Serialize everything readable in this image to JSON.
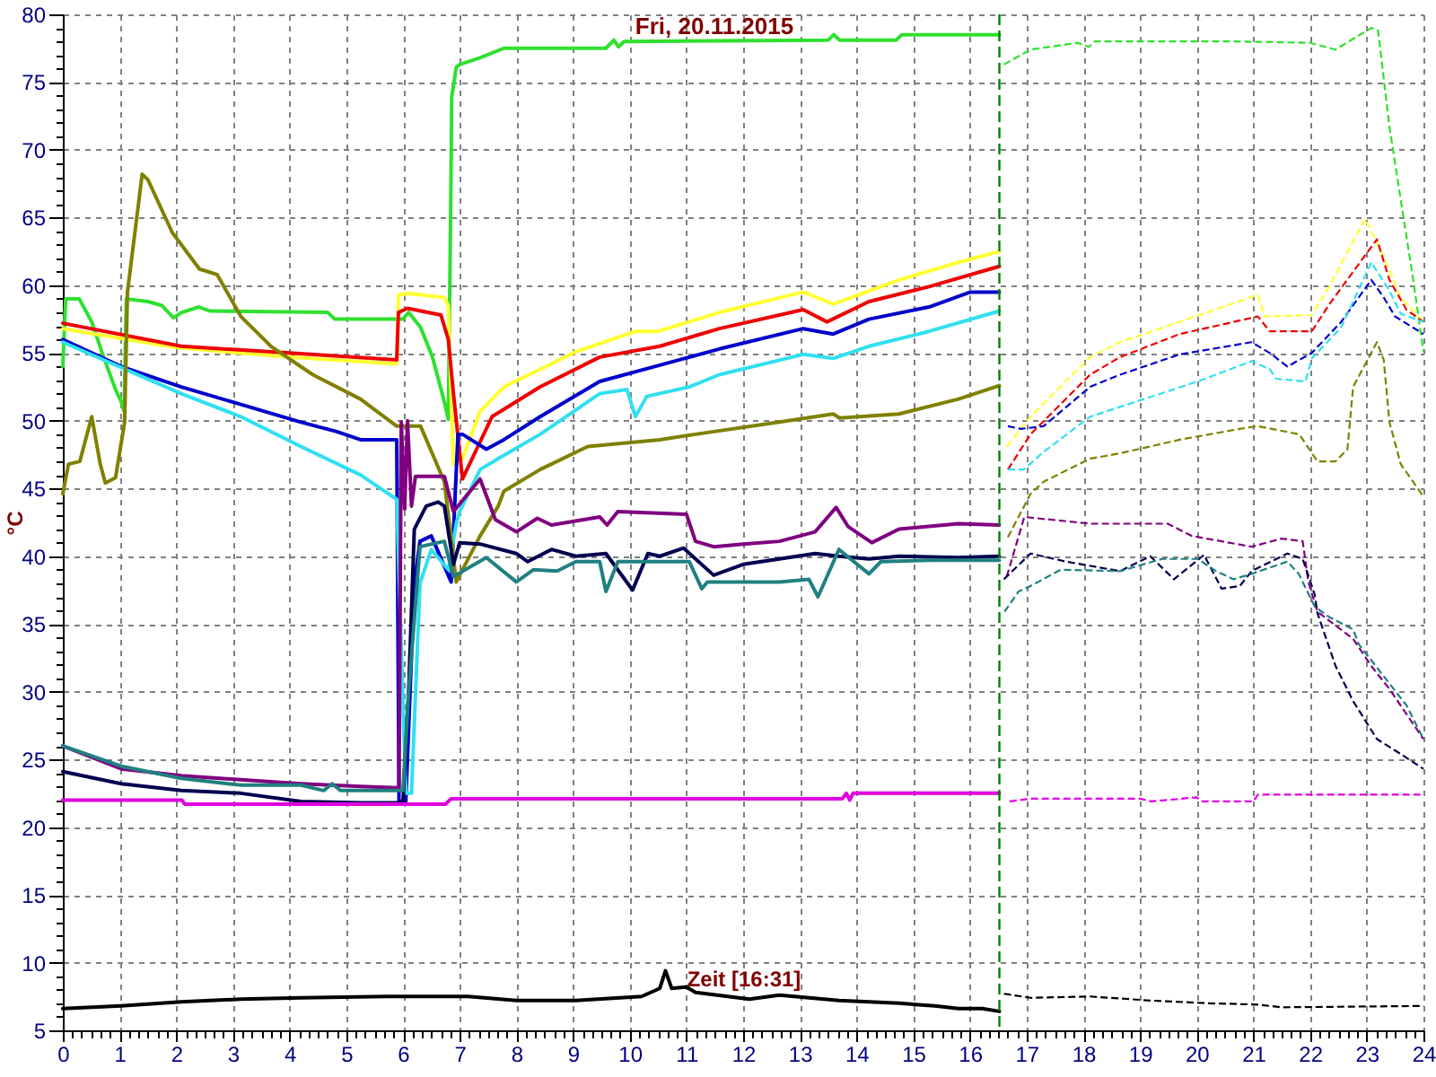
{
  "chart_data": {
    "type": "line",
    "title": "Fri, 20.11.2015",
    "xlabel": "Zeit [16:31]",
    "ylabel": "°C",
    "xlim": [
      0,
      24
    ],
    "ylim": [
      5,
      80
    ],
    "xticks": [
      0,
      {
        "value": 0.17,
        "label": null
      },
      {
        "value": 0.33,
        "label": null
      },
      {
        "value": 0.5,
        "label": null
      },
      {
        "value": 0.67,
        "label": null
      },
      {
        "value": 0.83,
        "label": null
      },
      1,
      {
        "value": 1.17,
        "label": null
      },
      {
        "value": 1.33,
        "label": null
      },
      {
        "value": 1.5,
        "label": null
      },
      {
        "value": 1.67,
        "label": null
      },
      {
        "value": 1.83,
        "label": null
      },
      2,
      {
        "value": 2.17,
        "label": null
      },
      {
        "value": 2.33,
        "label": null
      },
      {
        "value": 2.5,
        "label": null
      },
      {
        "value": 2.67,
        "label": null
      },
      {
        "value": 2.83,
        "label": null
      },
      3,
      {
        "value": 3.17,
        "label": null
      },
      {
        "value": 3.33,
        "label": null
      },
      {
        "value": 3.5,
        "label": null
      },
      {
        "value": 3.67,
        "label": null
      },
      {
        "value": 3.83,
        "label": null
      },
      4,
      {
        "value": 4.17,
        "label": null
      },
      {
        "value": 4.33,
        "label": null
      },
      {
        "value": 4.5,
        "label": null
      },
      {
        "value": 4.67,
        "label": null
      },
      {
        "value": 4.83,
        "label": null
      },
      5,
      {
        "value": 5.17,
        "label": null
      },
      {
        "value": 5.33,
        "label": null
      },
      {
        "value": 5.5,
        "label": null
      },
      {
        "value": 5.67,
        "label": null
      },
      {
        "value": 5.83,
        "label": null
      },
      6,
      {
        "value": 6.17,
        "label": null
      },
      {
        "value": 6.33,
        "label": null
      },
      {
        "value": 6.5,
        "label": null
      },
      {
        "value": 6.67,
        "label": null
      },
      {
        "value": 6.83,
        "label": null
      },
      7,
      {
        "value": 7.17,
        "label": null
      },
      {
        "value": 7.33,
        "label": null
      },
      {
        "value": 7.5,
        "label": null
      },
      {
        "value": 7.67,
        "label": null
      },
      {
        "value": 7.83,
        "label": null
      },
      8,
      {
        "value": 8.17,
        "label": null
      },
      {
        "value": 8.33,
        "label": null
      },
      {
        "value": 8.5,
        "label": null
      },
      {
        "value": 8.67,
        "label": null
      },
      {
        "value": 8.83,
        "label": null
      },
      9,
      {
        "value": 9.17,
        "label": null
      },
      {
        "value": 9.33,
        "label": null
      },
      {
        "value": 9.5,
        "label": null
      },
      {
        "value": 9.67,
        "label": null
      },
      {
        "value": 9.83,
        "label": null
      },
      10,
      {
        "value": 10.17,
        "label": null
      },
      {
        "value": 10.33,
        "label": null
      },
      {
        "value": 10.5,
        "label": null
      },
      {
        "value": 10.67,
        "label": null
      },
      {
        "value": 10.83,
        "label": null
      },
      11,
      {
        "value": 11.17,
        "label": null
      },
      {
        "value": 11.33,
        "label": null
      },
      {
        "value": 11.5,
        "label": null
      },
      {
        "value": 11.67,
        "label": null
      },
      {
        "value": 11.83,
        "label": null
      },
      12,
      {
        "value": 12.17,
        "label": null
      },
      {
        "value": 12.33,
        "label": null
      },
      {
        "value": 12.5,
        "label": null
      },
      {
        "value": 12.67,
        "label": null
      },
      {
        "value": 12.83,
        "label": null
      },
      13,
      {
        "value": 13.17,
        "label": null
      },
      {
        "value": 13.33,
        "label": null
      },
      {
        "value": 13.5,
        "label": null
      },
      {
        "value": 13.67,
        "label": null
      },
      {
        "value": 13.83,
        "label": null
      },
      14,
      {
        "value": 14.17,
        "label": null
      },
      {
        "value": 14.33,
        "label": null
      },
      {
        "value": 14.5,
        "label": null
      },
      {
        "value": 14.67,
        "label": null
      },
      {
        "value": 14.83,
        "label": null
      },
      15,
      {
        "value": 15.17,
        "label": null
      },
      {
        "value": 15.33,
        "label": null
      },
      {
        "value": 15.5,
        "label": null
      },
      {
        "value": 15.67,
        "label": null
      },
      {
        "value": 15.83,
        "label": null
      },
      16,
      {
        "value": 16.17,
        "label": null
      },
      {
        "value": 16.33,
        "label": null
      },
      {
        "value": 16.5,
        "label": null
      },
      {
        "value": 16.67,
        "label": null
      },
      {
        "value": 16.83,
        "label": null
      },
      17,
      {
        "value": 17.17,
        "label": null
      },
      {
        "value": 17.33,
        "label": null
      },
      {
        "value": 17.5,
        "label": null
      },
      {
        "value": 17.67,
        "label": null
      },
      {
        "value": 17.83,
        "label": null
      },
      18,
      {
        "value": 18.17,
        "label": null
      },
      {
        "value": 18.33,
        "label": null
      },
      {
        "value": 18.5,
        "label": null
      },
      {
        "value": 18.67,
        "label": null
      },
      {
        "value": 18.83,
        "label": null
      },
      19,
      {
        "value": 19.17,
        "label": null
      },
      {
        "value": 19.33,
        "label": null
      },
      {
        "value": 19.5,
        "label": null
      },
      {
        "value": 19.67,
        "label": null
      },
      {
        "value": 19.83,
        "label": null
      },
      20,
      {
        "value": 20.17,
        "label": null
      },
      {
        "value": 20.33,
        "label": null
      },
      {
        "value": 20.5,
        "label": null
      },
      {
        "value": 20.67,
        "label": null
      },
      {
        "value": 20.83,
        "label": null
      },
      21,
      {
        "value": 21.17,
        "label": null
      },
      {
        "value": 21.33,
        "label": null
      },
      {
        "value": 21.5,
        "label": null
      },
      {
        "value": 21.67,
        "label": null
      },
      {
        "value": 21.83,
        "label": null
      },
      22,
      {
        "value": 22.17,
        "label": null
      },
      {
        "value": 22.33,
        "label": null
      },
      {
        "value": 22.5,
        "label": null
      },
      {
        "value": 22.67,
        "label": null
      },
      {
        "value": 22.83,
        "label": null
      },
      23,
      {
        "value": 23.17,
        "label": null
      },
      {
        "value": 23.33,
        "label": null
      },
      {
        "value": 23.5,
        "label": null
      },
      {
        "value": 23.67,
        "label": null
      },
      {
        "value": 23.83,
        "label": null
      },
      24
    ],
    "yticks": [
      5,
      {
        "value": 6,
        "label": null
      },
      {
        "value": 7,
        "label": null
      },
      {
        "value": 8,
        "label": null
      },
      {
        "value": 9,
        "label": null
      },
      10,
      {
        "value": 11,
        "label": null
      },
      {
        "value": 12,
        "label": null
      },
      {
        "value": 13,
        "label": null
      },
      {
        "value": 14,
        "label": null
      },
      15,
      {
        "value": 16,
        "label": null
      },
      {
        "value": 17,
        "label": null
      },
      {
        "value": 18,
        "label": null
      },
      {
        "value": 19,
        "label": null
      },
      20,
      {
        "value": 21,
        "label": null
      },
      {
        "value": 22,
        "label": null
      },
      {
        "value": 23,
        "label": null
      },
      {
        "value": 24,
        "label": null
      },
      25,
      {
        "value": 26,
        "label": null
      },
      {
        "value": 27,
        "label": null
      },
      {
        "value": 28,
        "label": null
      },
      {
        "value": 29,
        "label": null
      },
      30,
      {
        "value": 31,
        "label": null
      },
      {
        "value": 32,
        "label": null
      },
      {
        "value": 33,
        "label": null
      },
      {
        "value": 34,
        "label": null
      },
      35,
      {
        "value": 36,
        "label": null
      },
      {
        "value": 37,
        "label": null
      },
      {
        "value": 38,
        "label": null
      },
      {
        "value": 39,
        "label": null
      },
      40,
      {
        "value": 41,
        "label": null
      },
      {
        "value": 42,
        "label": null
      },
      {
        "value": 43,
        "label": null
      },
      {
        "value": 44,
        "label": null
      },
      45,
      {
        "value": 46,
        "label": null
      },
      {
        "value": 47,
        "label": null
      },
      {
        "value": 48,
        "label": null
      },
      {
        "value": 49,
        "label": null
      },
      50,
      {
        "value": 51,
        "label": null
      },
      {
        "value": 52,
        "label": null
      },
      {
        "value": 53,
        "label": null
      },
      {
        "value": 54,
        "label": null
      },
      55,
      {
        "value": 56,
        "label": null
      },
      {
        "value": 57,
        "label": null
      },
      {
        "value": 58,
        "label": null
      },
      {
        "value": 59,
        "label": null
      },
      60,
      {
        "value": 61,
        "label": null
      },
      {
        "value": 62,
        "label": null
      },
      {
        "value": 63,
        "label": null
      },
      {
        "value": 64,
        "label": null
      },
      65,
      {
        "value": 66,
        "label": null
      },
      {
        "value": 67,
        "label": null
      },
      {
        "value": 68,
        "label": null
      },
      {
        "value": 69,
        "label": null
      },
      70,
      {
        "value": 71,
        "label": null
      },
      {
        "value": 72,
        "label": null
      },
      {
        "value": 73,
        "label": null
      },
      {
        "value": 74,
        "label": null
      },
      75,
      {
        "value": 76,
        "label": null
      },
      {
        "value": 77,
        "label": null
      },
      {
        "value": 78,
        "label": null
      },
      {
        "value": 79,
        "label": null
      },
      80
    ],
    "grid": true,
    "ref_lines": [
      {
        "axis": "x",
        "value": 16.52,
        "color": "#008000",
        "line_style": "dashed"
      }
    ],
    "series": [
      {
        "color": "#2fe02f",
        "line_style": "solid",
        "x": [
          0,
          0.05,
          0.29,
          0.51,
          0.72,
          0.93,
          1.03,
          1.08,
          1.12,
          1.5,
          1.75,
          1.95,
          2.1,
          2.4,
          2.6,
          4.67,
          4.8,
          6.0,
          6.1,
          6.31,
          6.52,
          6.73,
          6.8,
          6.84,
          6.86,
          6.94,
          7.0,
          7.36,
          7.78,
          9.58,
          9.72,
          9.8,
          9.9,
          13.5,
          13.6,
          13.7,
          14.7,
          14.8,
          16.52
        ],
        "values": [
          54.0,
          59.0,
          59.0,
          57.3,
          54.7,
          52.3,
          51.4,
          50.7,
          59.0,
          58.8,
          58.5,
          57.6,
          58.0,
          58.4,
          58.1,
          58.0,
          57.5,
          57.5,
          58.0,
          56.9,
          54.7,
          51.4,
          50.1,
          65.0,
          73.9,
          76.1,
          76.3,
          76.8,
          77.5,
          77.5,
          78.1,
          77.6,
          78.0,
          78.1,
          78.5,
          78.1,
          78.1,
          78.5,
          78.5
        ]
      },
      {
        "color": "#ffff30",
        "line_style": "solid",
        "x": [
          0,
          2.0,
          4.0,
          5.89,
          5.92,
          6.1,
          6.73,
          6.8,
          6.89,
          7.05,
          7.36,
          7.78,
          8.42,
          9.05,
          10.1,
          10.5,
          11.58,
          13.06,
          13.59,
          14.75,
          15.8,
          16.52
        ],
        "values": [
          56.8,
          55.4,
          54.7,
          54.2,
          59.3,
          59.4,
          59.1,
          58.5,
          46.8,
          47.2,
          50.7,
          52.5,
          53.8,
          55.1,
          56.6,
          56.6,
          58.0,
          59.5,
          58.6,
          60.4,
          61.7,
          62.5
        ]
      },
      {
        "color": "#ee0000",
        "line_style": "solid",
        "x": [
          0,
          2.09,
          4.0,
          5.89,
          5.92,
          6.08,
          6.67,
          6.8,
          6.89,
          7.05,
          7.57,
          8.42,
          9.47,
          10.53,
          11.58,
          13.06,
          13.48,
          14.22,
          15.28,
          16.52
        ],
        "values": [
          57.2,
          55.5,
          55.0,
          54.5,
          58.0,
          58.3,
          57.8,
          56.0,
          52.0,
          45.7,
          50.3,
          52.5,
          54.7,
          55.5,
          56.8,
          58.2,
          57.3,
          58.8,
          59.9,
          61.4
        ]
      },
      {
        "color": "#0000cc",
        "line_style": "solid",
        "x": [
          0,
          1.03,
          2.09,
          3.14,
          4.2,
          4.83,
          5.25,
          5.89,
          5.93,
          6.05,
          6.2,
          6.3,
          6.5,
          6.85,
          6.97,
          7.05,
          7.47,
          7.78,
          8.42,
          9.47,
          10.53,
          11.58,
          13.06,
          13.59,
          14.22,
          15.28,
          16.01,
          16.52
        ],
        "values": [
          56.0,
          54.0,
          52.5,
          51.2,
          49.9,
          49.2,
          48.6,
          48.6,
          21.9,
          21.9,
          38.0,
          41.1,
          41.5,
          38.1,
          49.0,
          49.0,
          47.9,
          48.6,
          50.3,
          52.9,
          54.1,
          55.3,
          56.8,
          56.4,
          57.5,
          58.4,
          59.5,
          59.5
        ]
      },
      {
        "color": "#30e0f0",
        "line_style": "solid",
        "x": [
          0,
          2.09,
          3.14,
          4.2,
          5.25,
          5.89,
          5.92,
          6.05,
          6.15,
          6.3,
          6.5,
          6.8,
          6.94,
          7.0,
          7.36,
          7.68,
          8.42,
          9.47,
          9.95,
          10.1,
          10.3,
          11.05,
          11.58,
          13.06,
          13.59,
          14.22,
          15.28,
          16.52
        ],
        "values": [
          55.8,
          52.0,
          50.3,
          48.1,
          46.0,
          44.2,
          40.0,
          22.5,
          22.5,
          38.0,
          40.5,
          39.0,
          42.4,
          43.3,
          46.4,
          47.2,
          49.0,
          52.0,
          52.3,
          50.3,
          51.8,
          52.5,
          53.4,
          54.9,
          54.6,
          55.5,
          56.6,
          58.1
        ]
      },
      {
        "color": "#808000",
        "line_style": "solid",
        "x": [
          0,
          0.1,
          0.3,
          0.51,
          0.66,
          0.75,
          0.93,
          1.09,
          1.14,
          1.4,
          1.5,
          1.93,
          2.41,
          2.72,
          3.14,
          3.67,
          4.41,
          5.25,
          5.89,
          6.31,
          6.73,
          6.94,
          7.36,
          7.68,
          7.78,
          8.42,
          9.26,
          10.53,
          11.16,
          12.64,
          13.59,
          13.7,
          14.75,
          15.8,
          16.52
        ],
        "values": [
          44.6,
          46.8,
          47.0,
          50.3,
          46.8,
          45.4,
          45.8,
          49.9,
          59.5,
          68.2,
          67.8,
          63.9,
          61.2,
          60.8,
          57.7,
          55.5,
          53.4,
          51.6,
          49.6,
          49.6,
          45.5,
          38.1,
          41.5,
          43.7,
          44.8,
          46.4,
          48.1,
          48.6,
          49.0,
          49.9,
          50.5,
          50.2,
          50.5,
          51.6,
          52.6
        ]
      },
      {
        "color": "#800080",
        "line_style": "solid",
        "x": [
          0,
          1.03,
          2.09,
          3.14,
          4.2,
          5.25,
          5.89,
          5.93,
          5.97,
          6.03,
          6.08,
          6.15,
          6.22,
          6.62,
          6.73,
          6.89,
          7.36,
          7.63,
          8.0,
          8.37,
          8.62,
          9.47,
          9.6,
          9.79,
          11.0,
          11.16,
          11.48,
          12.0,
          12.64,
          13.27,
          13.64,
          13.85,
          14.27,
          14.75,
          15.8,
          16.52
        ],
        "values": [
          26.0,
          24.3,
          23.8,
          23.5,
          23.2,
          23.0,
          22.9,
          22.9,
          49.9,
          43.5,
          50.0,
          43.7,
          45.9,
          45.9,
          45.9,
          43.3,
          45.7,
          42.7,
          41.8,
          42.8,
          42.3,
          42.9,
          42.3,
          43.3,
          43.1,
          41.1,
          40.7,
          40.9,
          41.1,
          41.8,
          43.6,
          42.2,
          41.0,
          42.0,
          42.4,
          42.3
        ]
      },
      {
        "color": "#000050",
        "line_style": "solid",
        "x": [
          0,
          1.03,
          2.09,
          3.14,
          4.2,
          5.25,
          6.0,
          6.1,
          6.2,
          6.41,
          6.62,
          6.73,
          6.89,
          7.0,
          7.36,
          8.0,
          8.2,
          8.62,
          9.05,
          9.58,
          10.05,
          10.32,
          10.53,
          10.95,
          11.48,
          12.0,
          12.64,
          13.27,
          13.69,
          14.22,
          14.75,
          15.8,
          16.52
        ],
        "values": [
          24.1,
          23.2,
          22.7,
          22.5,
          21.9,
          21.8,
          21.8,
          30.0,
          42.0,
          43.7,
          44.0,
          43.7,
          39.4,
          41.0,
          40.9,
          40.2,
          39.6,
          40.5,
          40.0,
          40.2,
          37.5,
          40.2,
          40.0,
          40.6,
          38.6,
          39.4,
          39.8,
          40.2,
          40.0,
          39.8,
          40.0,
          39.9,
          40.0
        ]
      },
      {
        "color": "#208080",
        "line_style": "solid",
        "x": [
          0,
          1.03,
          2.09,
          3.14,
          4.2,
          4.6,
          4.75,
          4.9,
          5.25,
          6.0,
          6.1,
          6.3,
          6.73,
          6.89,
          7.47,
          8.0,
          8.3,
          8.72,
          9.05,
          9.47,
          9.58,
          9.79,
          11.05,
          11.27,
          11.37,
          12.64,
          13.16,
          13.32,
          13.69,
          14.22,
          14.43,
          15.28,
          16.52
        ],
        "values": [
          26.0,
          24.5,
          23.6,
          23.1,
          23.1,
          22.7,
          23.2,
          22.7,
          22.7,
          22.7,
          30.0,
          40.7,
          41.1,
          38.5,
          39.9,
          38.1,
          39.0,
          38.9,
          39.6,
          39.6,
          37.4,
          39.6,
          39.6,
          37.6,
          38.1,
          38.1,
          38.3,
          37.0,
          40.5,
          38.7,
          39.6,
          39.7,
          39.7
        ]
      },
      {
        "color": "#e000e0",
        "line_style": "solid",
        "x": [
          0,
          2.1,
          2.15,
          6.75,
          6.85,
          13.75,
          13.82,
          13.88,
          13.94,
          14.0,
          16.52
        ],
        "values": [
          22.0,
          22.0,
          21.7,
          21.7,
          22.1,
          22.1,
          22.5,
          22.0,
          22.5,
          22.5,
          22.5
        ]
      },
      {
        "color": "#000000",
        "line_style": "solid",
        "x": [
          0,
          1.03,
          2.09,
          3.14,
          4.2,
          5.7,
          6.31,
          7.15,
          8.0,
          9.05,
          10.21,
          10.53,
          10.63,
          10.74,
          11.0,
          11.16,
          12.11,
          12.64,
          13.69,
          14.75,
          15.38,
          15.8,
          16.22,
          16.52
        ],
        "values": [
          6.6,
          6.8,
          7.1,
          7.3,
          7.4,
          7.5,
          7.5,
          7.5,
          7.2,
          7.2,
          7.5,
          8.1,
          9.4,
          8.1,
          8.2,
          7.8,
          7.3,
          7.6,
          7.2,
          7.0,
          6.8,
          6.6,
          6.6,
          6.4
        ]
      },
      {
        "color": "#2fe02f",
        "line_style": "dashed",
        "x": [
          16.6,
          17.07,
          17.9,
          18.1,
          18.2,
          20.65,
          22.0,
          22.45,
          23.08,
          23.2,
          23.4,
          23.82,
          24
        ],
        "values": [
          76.3,
          77.4,
          77.9,
          77.6,
          78.0,
          78.0,
          77.9,
          77.4,
          79.0,
          78.8,
          71.7,
          60.4,
          55.1
        ]
      },
      {
        "color": "#ffff30",
        "line_style": "dashed",
        "x": [
          16.65,
          17.07,
          18.12,
          18.65,
          19.7,
          21.08,
          21.2,
          22.03,
          22.34,
          22.97,
          23.3,
          23.6,
          24
        ],
        "values": [
          48.1,
          50.3,
          54.7,
          55.8,
          57.3,
          59.3,
          57.7,
          57.8,
          59.9,
          64.9,
          62.1,
          59.1,
          57.3
        ]
      },
      {
        "color": "#ee0000",
        "line_style": "dashed",
        "x": [
          16.67,
          17.07,
          18.12,
          18.65,
          19.7,
          21.08,
          21.29,
          22.03,
          22.34,
          23.18,
          23.4,
          23.7,
          24
        ],
        "values": [
          46.4,
          49.0,
          53.4,
          54.7,
          56.4,
          57.7,
          56.6,
          56.6,
          58.6,
          63.4,
          60.4,
          58.2,
          57.3
        ]
      },
      {
        "color": "#0000cc",
        "line_style": "dashed",
        "x": [
          16.67,
          16.9,
          17.3,
          18.12,
          18.65,
          19.7,
          20.97,
          21.29,
          21.6,
          22.03,
          22.55,
          23.08,
          23.3,
          23.5,
          24
        ],
        "values": [
          49.6,
          49.4,
          49.6,
          52.5,
          53.4,
          54.9,
          55.8,
          55.0,
          54.0,
          55.0,
          57.3,
          60.4,
          59.1,
          57.7,
          56.4
        ]
      },
      {
        "color": "#30e0f0",
        "line_style": "dashed",
        "x": [
          16.67,
          16.95,
          17.3,
          18.12,
          19.07,
          20.02,
          20.97,
          21.29,
          21.4,
          21.92,
          22.03,
          22.55,
          23.08,
          23.4,
          23.6,
          24
        ],
        "values": [
          46.4,
          46.4,
          47.7,
          50.3,
          51.6,
          52.9,
          54.4,
          53.8,
          53.1,
          52.9,
          54.6,
          56.9,
          61.7,
          59.6,
          57.9,
          57.3
        ]
      },
      {
        "color": "#808000",
        "line_style": "dashed",
        "x": [
          16.67,
          17.07,
          17.3,
          18.12,
          18.65,
          19.18,
          19.7,
          20.76,
          21.08,
          21.81,
          22.13,
          22.45,
          22.66,
          22.76,
          23.18,
          23.3,
          23.4,
          23.6,
          24
        ],
        "values": [
          41.4,
          44.6,
          45.5,
          47.2,
          47.6,
          48.1,
          48.6,
          49.4,
          49.6,
          49.0,
          47.0,
          47.0,
          47.9,
          52.5,
          55.8,
          54.5,
          49.9,
          46.8,
          44.4
        ]
      },
      {
        "color": "#800080",
        "line_style": "dashed",
        "x": [
          16.65,
          16.96,
          18.12,
          19.49,
          19.91,
          20.97,
          21.5,
          21.87,
          21.97,
          22.13,
          22.76,
          23.08,
          23.4,
          24
        ],
        "values": [
          38.5,
          42.9,
          42.4,
          42.4,
          41.5,
          40.7,
          41.3,
          41.1,
          38.1,
          35.9,
          33.9,
          31.9,
          30.2,
          26.5
        ]
      },
      {
        "color": "#000050",
        "line_style": "dashed",
        "x": [
          16.6,
          17.07,
          17.7,
          18.65,
          19.18,
          19.6,
          20.13,
          20.44,
          20.76,
          20.97,
          21.6,
          21.87,
          22.08,
          22.13,
          22.45,
          22.76,
          23.18,
          23.6,
          24
        ],
        "values": [
          38.3,
          40.2,
          39.6,
          38.9,
          40.0,
          38.3,
          40.1,
          37.6,
          37.8,
          38.9,
          40.2,
          39.8,
          37.2,
          35.8,
          31.9,
          29.3,
          26.5,
          25.4,
          24.3
        ]
      },
      {
        "color": "#208080",
        "line_style": "dashed",
        "x": [
          16.61,
          16.86,
          17.07,
          17.6,
          18.65,
          19.39,
          20.02,
          20.34,
          20.65,
          20.97,
          21.6,
          21.8,
          22.08,
          22.34,
          22.76,
          22.86,
          23.4,
          23.7,
          24
        ],
        "values": [
          35.9,
          37.4,
          37.8,
          39.0,
          38.9,
          39.8,
          39.8,
          38.9,
          38.3,
          38.7,
          39.6,
          38.7,
          36.3,
          35.5,
          34.6,
          33.5,
          30.6,
          29.0,
          26.5
        ]
      },
      {
        "color": "#e000e0",
        "line_style": "dashed",
        "x": [
          16.7,
          17.07,
          19.0,
          19.2,
          20.0,
          20.1,
          21.0,
          21.08,
          24
        ],
        "values": [
          21.9,
          22.1,
          22.1,
          21.9,
          22.2,
          21.9,
          21.9,
          22.4,
          22.4
        ]
      },
      {
        "color": "#000000",
        "line_style": "dashed",
        "x": [
          16.6,
          17.07,
          18.12,
          19.18,
          20.2,
          21.08,
          21.5,
          24
        ],
        "values": [
          7.7,
          7.4,
          7.5,
          7.2,
          7.0,
          6.9,
          6.7,
          6.8
        ]
      }
    ]
  }
}
